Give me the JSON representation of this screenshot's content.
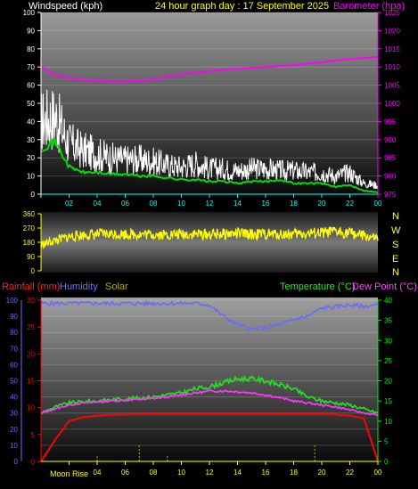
{
  "header": {
    "left_label": "Windspeed (kph)",
    "title": "24 hour graph day : 17 September 2025",
    "right_label": "Barometer (hpa)"
  },
  "colors": {
    "windspeed": "#ffffff",
    "wind_avg": "#00dd00",
    "barometer": "#ff00ff",
    "wind_dir": "#ffff00",
    "rainfall": "#ff0000",
    "humidity": "#6a6aff",
    "solar": "#b0b000",
    "temperature": "#22dd22",
    "dew_point": "#ff33ff",
    "axis_left": "#ffffff",
    "axis_right": "#ff00ff",
    "axis_temp": "#00ee00"
  },
  "bottom_header": {
    "rainfall": "Rainfall (mm)",
    "humidity": "Humidity",
    "solar": "Solar",
    "temperature": "Temperature (°C)",
    "dew_point": "Dew Point (°C)"
  },
  "markers": {
    "moon": "Moon",
    "rise": "Rise"
  },
  "compass": [
    "N",
    "W",
    "S",
    "E",
    "N"
  ],
  "chart_data": [
    {
      "type": "line",
      "name": "wind_barometer",
      "x_ticks": [
        "02",
        "04",
        "06",
        "08",
        "10",
        "12",
        "14",
        "16",
        "18",
        "20",
        "22",
        "00"
      ],
      "y_left": {
        "label": "Windspeed (kph)",
        "ticks": [
          0,
          10,
          20,
          30,
          40,
          50,
          60,
          70,
          80,
          90,
          100
        ],
        "ylim": [
          0,
          100
        ]
      },
      "y_right": {
        "label": "Barometer (hpa)",
        "ticks": [
          975,
          980,
          985,
          990,
          995,
          1000,
          1005,
          1010,
          1015,
          1020,
          1025
        ],
        "ylim": [
          975,
          1025
        ]
      },
      "x": [
        0,
        1,
        2,
        3,
        4,
        5,
        6,
        7,
        8,
        9,
        10,
        11,
        12,
        13,
        14,
        15,
        16,
        17,
        18,
        19,
        20,
        21,
        22,
        23,
        24
      ],
      "series": [
        {
          "name": "Windspeed (kph)",
          "axis": "left",
          "values": [
            40,
            43,
            28,
            24,
            22,
            20,
            19,
            19,
            18,
            16,
            15,
            17,
            14,
            14,
            13,
            14,
            14,
            13,
            13,
            12,
            12,
            10,
            12,
            6,
            5
          ]
        },
        {
          "name": "",
          "axis": "left",
          "values": [
            25,
            29,
            15,
            12,
            12,
            11,
            11,
            10,
            10,
            9,
            8,
            8,
            7,
            7,
            6,
            7,
            7,
            8,
            6,
            6,
            6,
            4,
            5,
            2,
            1
          ]
        },
        {
          "name": "Barometer (hpa)",
          "axis": "right",
          "values": [
            1010,
            1007.8,
            1007,
            1006.5,
            1006.2,
            1006,
            1006,
            1006.2,
            1006.6,
            1007.3,
            1008,
            1008.5,
            1008.9,
            1009.2,
            1009.5,
            1009.8,
            1010,
            1010.3,
            1010.5,
            1010.9,
            1011.3,
            1011.8,
            1012.2,
            1012.5,
            1012.8
          ]
        }
      ]
    },
    {
      "type": "line",
      "name": "wind_direction",
      "y_ticks": [
        0,
        90,
        180,
        270,
        360
      ],
      "ylim": [
        0,
        360
      ],
      "x": [
        0,
        1,
        2,
        3,
        4,
        5,
        6,
        7,
        8,
        9,
        10,
        11,
        12,
        13,
        14,
        15,
        16,
        17,
        18,
        19,
        20,
        21,
        22,
        23,
        24
      ],
      "series": [
        {
          "name": "",
          "values": [
            165,
            190,
            215,
            225,
            230,
            232,
            232,
            230,
            230,
            228,
            230,
            232,
            230,
            232,
            235,
            230,
            232,
            230,
            232,
            235,
            238,
            245,
            240,
            220,
            200
          ]
        }
      ]
    },
    {
      "type": "line",
      "name": "rain_humidity_temp",
      "y_humidity": {
        "ticks": [
          0,
          10,
          20,
          30,
          40,
          50,
          60,
          70,
          80,
          90,
          100
        ],
        "ylim": [
          0,
          100
        ]
      },
      "y_rain": {
        "ticks": [
          0,
          5,
          10,
          15,
          20,
          25,
          30
        ],
        "ylim": [
          0,
          30
        ]
      },
      "y_temp": {
        "ticks": [
          0,
          5,
          10,
          15,
          20,
          25,
          30,
          35,
          40
        ],
        "ylim": [
          0,
          40
        ]
      },
      "x": [
        0,
        1,
        2,
        3,
        4,
        5,
        6,
        7,
        8,
        9,
        10,
        11,
        12,
        13,
        14,
        15,
        16,
        17,
        18,
        19,
        20,
        21,
        22,
        23,
        24
      ],
      "series": [
        {
          "name": "Humidity",
          "axis": "humidity",
          "values": [
            98,
            98,
            98,
            98,
            98,
            98,
            98,
            98,
            98,
            98,
            98,
            98,
            97,
            90,
            85,
            82,
            83,
            85,
            88,
            90,
            95,
            96,
            97,
            96,
            97
          ]
        },
        {
          "name": "Rainfall (mm)",
          "axis": "rain",
          "values": [
            0,
            4,
            7.5,
            8.2,
            8.5,
            8.7,
            8.7,
            8.8,
            8.8,
            8.8,
            8.8,
            8.8,
            8.8,
            8.8,
            8.8,
            8.8,
            8.8,
            8.8,
            8.8,
            8.8,
            8.8,
            8.7,
            8.5,
            8,
            0
          ]
        },
        {
          "name": "Temperature (°C)",
          "axis": "temp",
          "values": [
            12,
            13.5,
            14.5,
            14.8,
            15,
            15.3,
            15.5,
            15.7,
            16,
            16.5,
            17,
            18,
            18.5,
            19.5,
            20.5,
            20.5,
            20,
            19,
            18,
            16,
            15,
            14.5,
            14,
            13,
            12
          ]
        },
        {
          "name": "Dew Point (°C)",
          "axis": "temp",
          "values": [
            12,
            13,
            14,
            14.5,
            14.8,
            15,
            15.2,
            15.4,
            15.6,
            16,
            16.5,
            17,
            17.4,
            17.5,
            17.3,
            17,
            16.5,
            15.8,
            15,
            14.5,
            14,
            13.5,
            12.8,
            12,
            11.5
          ]
        },
        {
          "name": "Solar",
          "axis": "humidity",
          "values": [
            0,
            0,
            0,
            0,
            0,
            0,
            0,
            0,
            0,
            0,
            0,
            0,
            0,
            0,
            0,
            0,
            0,
            0,
            0,
            0,
            0,
            0,
            0,
            0,
            0
          ]
        }
      ]
    }
  ]
}
